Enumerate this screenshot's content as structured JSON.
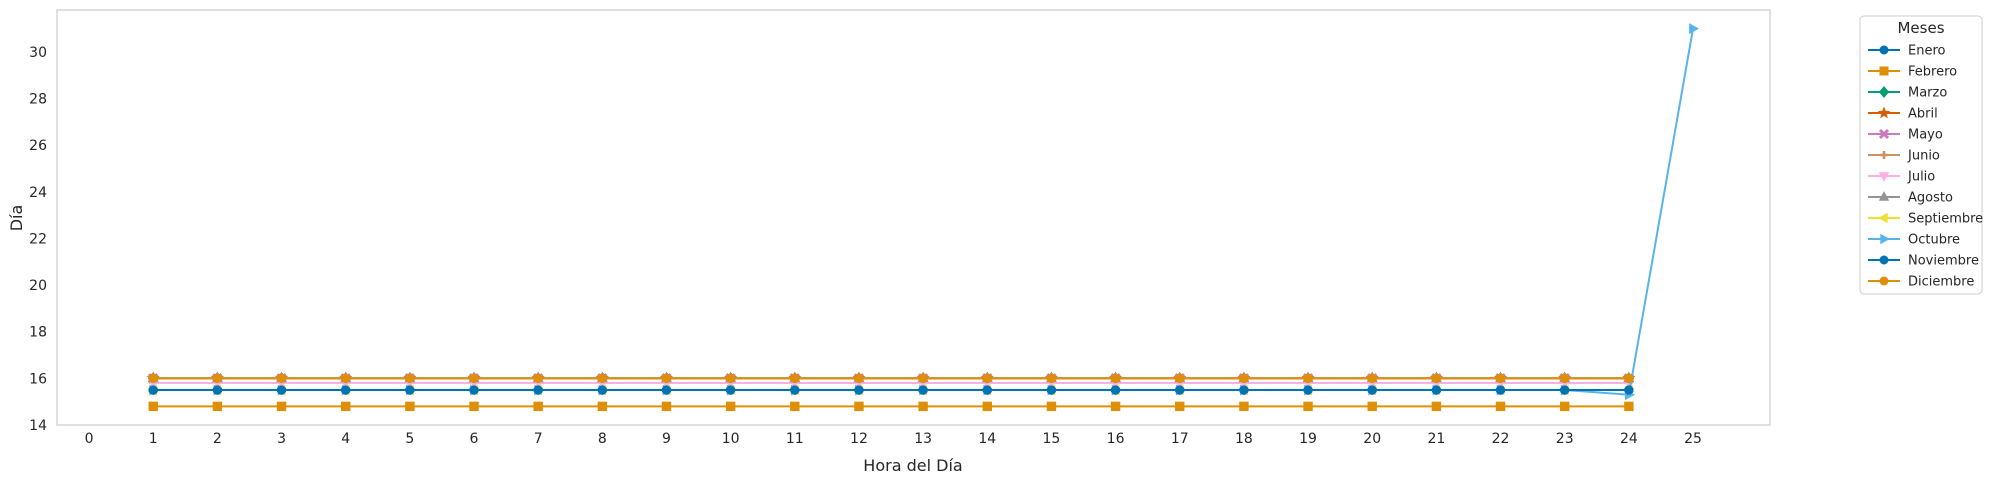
{
  "chart_data": {
    "type": "line",
    "xlabel": "Hora del Día",
    "ylabel": "Día",
    "xlim": [
      -0.5,
      26.2
    ],
    "ylim": [
      14,
      31.8
    ],
    "xticks": [
      "0",
      "1",
      "2",
      "3",
      "4",
      "5",
      "6",
      "7",
      "8",
      "9",
      "10",
      "11",
      "12",
      "13",
      "14",
      "15",
      "16",
      "17",
      "18",
      "19",
      "20",
      "21",
      "22",
      "23",
      "24",
      "25"
    ],
    "yticks": [
      "14",
      "16",
      "18",
      "20",
      "22",
      "24",
      "26",
      "28",
      "30"
    ],
    "grid": false,
    "legend": {
      "title": "Meses",
      "placement": "outside-top-right"
    },
    "x": [
      1,
      2,
      3,
      4,
      5,
      6,
      7,
      8,
      9,
      10,
      11,
      12,
      13,
      14,
      15,
      16,
      17,
      18,
      19,
      20,
      21,
      22,
      23,
      24
    ],
    "series": [
      {
        "name": "Enero",
        "color": "#0173b2",
        "marker": "circle",
        "x": [
          1,
          2,
          3,
          4,
          5,
          6,
          7,
          8,
          9,
          10,
          11,
          12,
          13,
          14,
          15,
          16,
          17,
          18,
          19,
          20,
          21,
          22,
          23,
          24
        ],
        "values": [
          15.5,
          15.5,
          15.5,
          15.5,
          15.5,
          15.5,
          15.5,
          15.5,
          15.5,
          15.5,
          15.5,
          15.5,
          15.5,
          15.5,
          15.5,
          15.5,
          15.5,
          15.5,
          15.5,
          15.5,
          15.5,
          15.5,
          15.5,
          15.5
        ]
      },
      {
        "name": "Febrero",
        "color": "#de8f05",
        "marker": "square",
        "x": [
          1,
          2,
          3,
          4,
          5,
          6,
          7,
          8,
          9,
          10,
          11,
          12,
          13,
          14,
          15,
          16,
          17,
          18,
          19,
          20,
          21,
          22,
          23,
          24
        ],
        "values": [
          14.8,
          14.8,
          14.8,
          14.8,
          14.8,
          14.8,
          14.8,
          14.8,
          14.8,
          14.8,
          14.8,
          14.8,
          14.8,
          14.8,
          14.8,
          14.8,
          14.8,
          14.8,
          14.8,
          14.8,
          14.8,
          14.8,
          14.8,
          14.8
        ]
      },
      {
        "name": "Marzo",
        "color": "#029e73",
        "marker": "diamond",
        "x": [
          1,
          2,
          3,
          4,
          5,
          6,
          7,
          8,
          9,
          10,
          11,
          12,
          13,
          14,
          15,
          16,
          17,
          18,
          19,
          20,
          21,
          22,
          23,
          24
        ],
        "values": [
          16,
          16,
          16,
          16,
          16,
          16,
          16,
          16,
          16,
          16,
          16,
          16,
          16,
          16,
          16,
          16,
          16,
          16,
          16,
          16,
          16,
          16,
          16,
          16
        ]
      },
      {
        "name": "Abril",
        "color": "#d55e00",
        "marker": "star",
        "x": [
          1,
          2,
          3,
          4,
          5,
          6,
          7,
          8,
          9,
          10,
          11,
          12,
          13,
          14,
          15,
          16,
          17,
          18,
          19,
          20,
          21,
          22,
          23,
          24
        ],
        "values": [
          16,
          16,
          16,
          16,
          16,
          16,
          16,
          16,
          16,
          16,
          16,
          16,
          16,
          16,
          16,
          16,
          16,
          16,
          16,
          16,
          16,
          16,
          16,
          16
        ]
      },
      {
        "name": "Mayo",
        "color": "#cc78bc",
        "marker": "x",
        "x": [
          1,
          2,
          3,
          4,
          5,
          6,
          7,
          8,
          9,
          10,
          11,
          12,
          13,
          14,
          15,
          16,
          17,
          18,
          19,
          20,
          21,
          22,
          23,
          24
        ],
        "values": [
          16,
          16,
          16,
          16,
          16,
          16,
          16,
          16,
          16,
          16,
          16,
          16,
          16,
          16,
          16,
          16,
          16,
          16,
          16,
          16,
          16,
          16,
          16,
          16
        ]
      },
      {
        "name": "Junio",
        "color": "#ca9161",
        "marker": "plus",
        "x": [
          1,
          2,
          3,
          4,
          5,
          6,
          7,
          8,
          9,
          10,
          11,
          12,
          13,
          14,
          15,
          16,
          17,
          18,
          19,
          20,
          21,
          22,
          23,
          24
        ],
        "values": [
          16,
          16,
          16,
          16,
          16,
          16,
          16,
          16,
          16,
          16,
          16,
          16,
          16,
          16,
          16,
          16,
          16,
          16,
          16,
          16,
          16,
          16,
          16,
          16
        ]
      },
      {
        "name": "Julio",
        "color": "#fbafe4",
        "marker": "triangle-down",
        "x": [
          1,
          2,
          3,
          4,
          5,
          6,
          7,
          8,
          9,
          10,
          11,
          12,
          13,
          14,
          15,
          16,
          17,
          18,
          19,
          20,
          21,
          22,
          23,
          24
        ],
        "values": [
          15.8,
          15.8,
          15.8,
          15.8,
          15.8,
          15.8,
          15.8,
          15.8,
          15.8,
          15.8,
          15.8,
          15.8,
          15.8,
          15.8,
          15.8,
          15.8,
          15.8,
          15.8,
          15.8,
          15.8,
          15.8,
          15.8,
          15.8,
          15.8
        ]
      },
      {
        "name": "Agosto",
        "color": "#949494",
        "marker": "triangle-up",
        "x": [
          1,
          2,
          3,
          4,
          5,
          6,
          7,
          8,
          9,
          10,
          11,
          12,
          13,
          14,
          15,
          16,
          17,
          18,
          19,
          20,
          21,
          22,
          23,
          24
        ],
        "values": [
          16,
          16,
          16,
          16,
          16,
          16,
          16,
          16,
          16,
          16,
          16,
          16,
          16,
          16,
          16,
          16,
          16,
          16,
          16,
          16,
          16,
          16,
          16,
          16
        ]
      },
      {
        "name": "Septiembre",
        "color": "#ece133",
        "marker": "triangle-left",
        "x": [
          1,
          2,
          3,
          4,
          5,
          6,
          7,
          8,
          9,
          10,
          11,
          12,
          13,
          14,
          15,
          16,
          17,
          18,
          19,
          20,
          21,
          22,
          23,
          24
        ],
        "values": [
          15.5,
          15.5,
          15.5,
          15.5,
          15.5,
          15.5,
          15.5,
          15.5,
          15.5,
          15.5,
          15.5,
          15.5,
          15.5,
          15.5,
          15.5,
          15.5,
          15.5,
          15.5,
          15.5,
          15.5,
          15.5,
          15.5,
          15.5,
          15.5
        ]
      },
      {
        "name": "Octubre",
        "color": "#56b4e9",
        "marker": "triangle-right",
        "x": [
          1,
          2,
          3,
          4,
          5,
          6,
          7,
          8,
          9,
          10,
          11,
          12,
          13,
          14,
          15,
          16,
          17,
          18,
          19,
          20,
          21,
          22,
          23,
          24,
          25
        ],
        "values": [
          15.5,
          15.5,
          15.5,
          15.5,
          15.5,
          15.5,
          15.5,
          15.5,
          15.5,
          15.5,
          15.5,
          15.5,
          15.5,
          15.5,
          15.5,
          15.5,
          15.5,
          15.5,
          15.5,
          15.5,
          15.5,
          15.5,
          15.5,
          15.3,
          31
        ]
      },
      {
        "name": "Noviembre",
        "color": "#0173b2",
        "marker": "circle",
        "x": [
          1,
          2,
          3,
          4,
          5,
          6,
          7,
          8,
          9,
          10,
          11,
          12,
          13,
          14,
          15,
          16,
          17,
          18,
          19,
          20,
          21,
          22,
          23,
          24
        ],
        "values": [
          15.5,
          15.5,
          15.5,
          15.5,
          15.5,
          15.5,
          15.5,
          15.5,
          15.5,
          15.5,
          15.5,
          15.5,
          15.5,
          15.5,
          15.5,
          15.5,
          15.5,
          15.5,
          15.5,
          15.5,
          15.5,
          15.5,
          15.5,
          15.5
        ]
      },
      {
        "name": "Diciembre",
        "color": "#de8f05",
        "marker": "circle",
        "x": [
          1,
          2,
          3,
          4,
          5,
          6,
          7,
          8,
          9,
          10,
          11,
          12,
          13,
          14,
          15,
          16,
          17,
          18,
          19,
          20,
          21,
          22,
          23,
          24
        ],
        "values": [
          16,
          16,
          16,
          16,
          16,
          16,
          16,
          16,
          16,
          16,
          16,
          16,
          16,
          16,
          16,
          16,
          16,
          16,
          16,
          16,
          16,
          16,
          16,
          16
        ]
      }
    ]
  }
}
